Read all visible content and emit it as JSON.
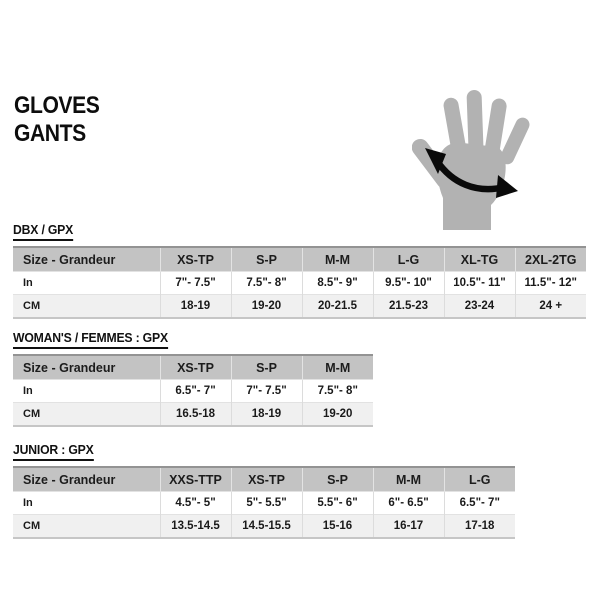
{
  "page": {
    "title_line1": "GLOVES",
    "title_line2": "GANTS"
  },
  "icons": {
    "hand": "hand-circumference-measure-icon",
    "arrow": "double-headed-measure-arrow"
  },
  "colors": {
    "header_bg": "#c3c3c3",
    "alt_row_bg": "#f0f0f0",
    "table_border": "#c6c6c6",
    "header_top_border": "#939393",
    "text": "#1a1a1a",
    "hand_gray": "#b2b2b2",
    "arrow_black": "#0a0a0a"
  },
  "tables": [
    {
      "label": "DBX / GPX",
      "size_header": "Size - Grandeur",
      "columns": [
        "XS-TP",
        "S-P",
        "M-M",
        "L-G",
        "XL-TG",
        "2XL-2TG"
      ],
      "rows": [
        {
          "label": "In",
          "values": [
            "7\"- 7.5\"",
            "7.5\"- 8\"",
            "8.5\"- 9\"",
            "9.5\"- 10\"",
            "10.5\"- 11\"",
            "11.5\"- 12\""
          ]
        },
        {
          "label": "CM",
          "values": [
            "18-19",
            "19-20",
            "20-21.5",
            "21.5-23",
            "23-24",
            "24 +"
          ]
        }
      ]
    },
    {
      "label": "WOMAN'S / FEMMES : GPX",
      "size_header": "Size - Grandeur",
      "columns": [
        "XS-TP",
        "S-P",
        "M-M"
      ],
      "rows": [
        {
          "label": "In",
          "values": [
            "6.5\"- 7\"",
            "7\"- 7.5\"",
            "7.5\"- 8\""
          ]
        },
        {
          "label": "CM",
          "values": [
            "16.5-18",
            "18-19",
            "19-20"
          ]
        }
      ]
    },
    {
      "label": "JUNIOR : GPX",
      "size_header": "Size - Grandeur",
      "columns": [
        "XXS-TTP",
        "XS-TP",
        "S-P",
        "M-M",
        "L-G"
      ],
      "rows": [
        {
          "label": "In",
          "values": [
            "4.5\"- 5\"",
            "5\"- 5.5\"",
            "5.5\"- 6\"",
            "6\"- 6.5\"",
            "6.5\"- 7\""
          ]
        },
        {
          "label": "CM",
          "values": [
            "13.5-14.5",
            "14.5-15.5",
            "15-16",
            "16-17",
            "17-18"
          ]
        }
      ]
    }
  ]
}
